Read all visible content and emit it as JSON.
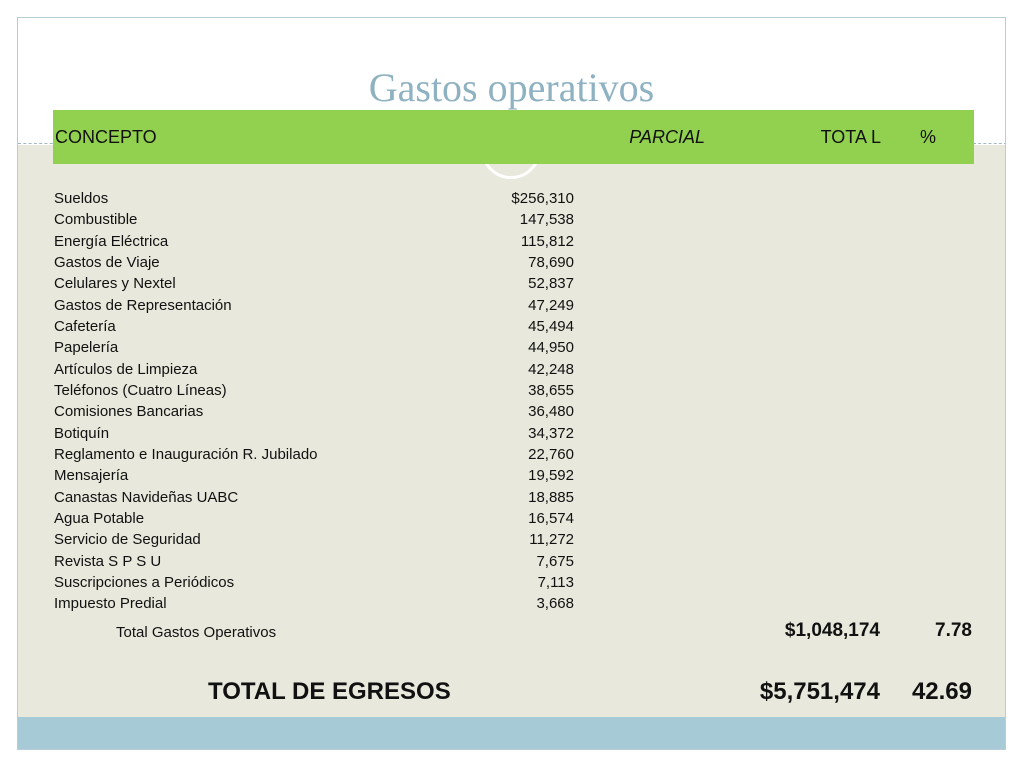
{
  "title": "Gastos operativos",
  "header": {
    "concepto": "CONCEPTO",
    "parcial": "PARCIAL",
    "total": "TOTA L",
    "pct": "%"
  },
  "rows": [
    {
      "concepto": "Sueldos",
      "parcial": "$256,310"
    },
    {
      "concepto": "Combustible",
      "parcial": "147,538"
    },
    {
      "concepto": "Energía Eléctrica",
      "parcial": "115,812"
    },
    {
      "concepto": "Gastos de Viaje",
      "parcial": "78,690"
    },
    {
      "concepto": "Celulares y  Nextel",
      "parcial": "52,837"
    },
    {
      "concepto": "Gastos de Representación",
      "parcial": "47,249"
    },
    {
      "concepto": "Cafetería",
      "parcial": "45,494"
    },
    {
      "concepto": "Papelería",
      "parcial": "44,950"
    },
    {
      "concepto": "Artículos de Limpieza",
      "parcial": "42,248"
    },
    {
      "concepto": "Teléfonos (Cuatro Líneas)",
      "parcial": "38,655"
    },
    {
      "concepto": "Comisiones Bancarias",
      "parcial": "36,480"
    },
    {
      "concepto": "Botiquín",
      "parcial": "34,372"
    },
    {
      "concepto": "Reglamento e Inauguración R. Jubilado",
      "parcial": "22,760"
    },
    {
      "concepto": "Mensajería",
      "parcial": "19,592"
    },
    {
      "concepto": "Canastas Navideñas  UABC",
      "parcial": "18,885"
    },
    {
      "concepto": "Agua Potable",
      "parcial": "16,574"
    },
    {
      "concepto": "Servicio de Seguridad",
      "parcial": "11,272"
    },
    {
      "concepto": "Revista S P S U",
      "parcial": "7,675"
    },
    {
      "concepto": "Suscripciones a Periódicos",
      "parcial": "7,113"
    },
    {
      "concepto": "Impuesto Predial",
      "parcial": "3,668"
    }
  ],
  "subtotal": {
    "label": "Total Gastos Operativos",
    "total": "$1,048,174",
    "pct": "7.78"
  },
  "grand_total": {
    "label": "TOTAL DE EGRESOS",
    "total": "$5,751,474",
    "pct": "42.69"
  },
  "colors": {
    "header_green": "#92d050",
    "title_blue": "#8fb2c2",
    "band_blue": "#a7cbd6",
    "beige": "#e8e8dc"
  }
}
